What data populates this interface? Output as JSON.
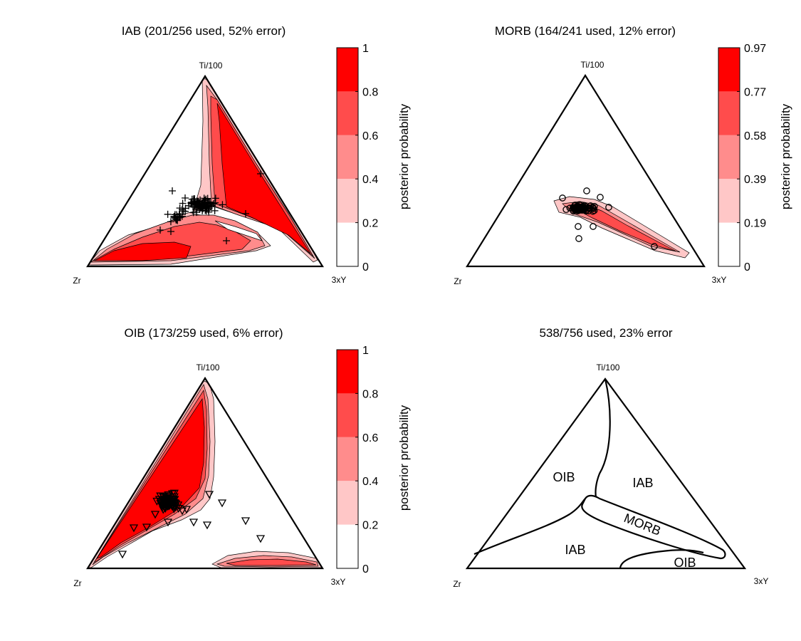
{
  "chart_data": [
    {
      "type": "ternary-contour",
      "title": "IAB (201/256 used, 52% error)",
      "vertices": {
        "top": "Ti/100",
        "left": "Zr",
        "right": "3xY"
      },
      "colorbar": {
        "label": "posterior probability",
        "ticks": [
          "0",
          "0.2",
          "0.4",
          "0.6",
          "0.8",
          "1"
        ]
      },
      "colors": [
        "#ffffff",
        "#ffc7c7",
        "#ff8c8c",
        "#ff4c4c",
        "#ff0000"
      ],
      "marker": "plus"
    },
    {
      "type": "ternary-contour",
      "title": "MORB (164/241 used, 12% error)",
      "vertices": {
        "top": "Ti/100",
        "left": "Zr",
        "right": "3xY"
      },
      "colorbar": {
        "label": "posterior probability",
        "ticks": [
          "0",
          "0.19",
          "0.39",
          "0.58",
          "0.77",
          "0.97"
        ]
      },
      "colors": [
        "#ffffff",
        "#ffc7c7",
        "#ff8c8c",
        "#ff4c4c",
        "#ff0000"
      ],
      "marker": "circle"
    },
    {
      "type": "ternary-contour",
      "title": "OIB (173/259 used, 6% error)",
      "vertices": {
        "top": "Ti/100",
        "left": "Zr",
        "right": "3xY"
      },
      "colorbar": {
        "label": "posterior probability",
        "ticks": [
          "0",
          "0.2",
          "0.4",
          "0.6",
          "0.8",
          "1"
        ]
      },
      "colors": [
        "#ffffff",
        "#ffc7c7",
        "#ff8c8c",
        "#ff4c4c",
        "#ff0000"
      ],
      "marker": "triangle-down"
    },
    {
      "type": "ternary-fields",
      "title": "538/756 used, 23% error",
      "vertices": {
        "top": "Ti/100",
        "left": "Zr",
        "right": "3xY"
      },
      "fields": [
        "OIB",
        "IAB",
        "MORB",
        "IAB",
        "OIB"
      ]
    }
  ]
}
